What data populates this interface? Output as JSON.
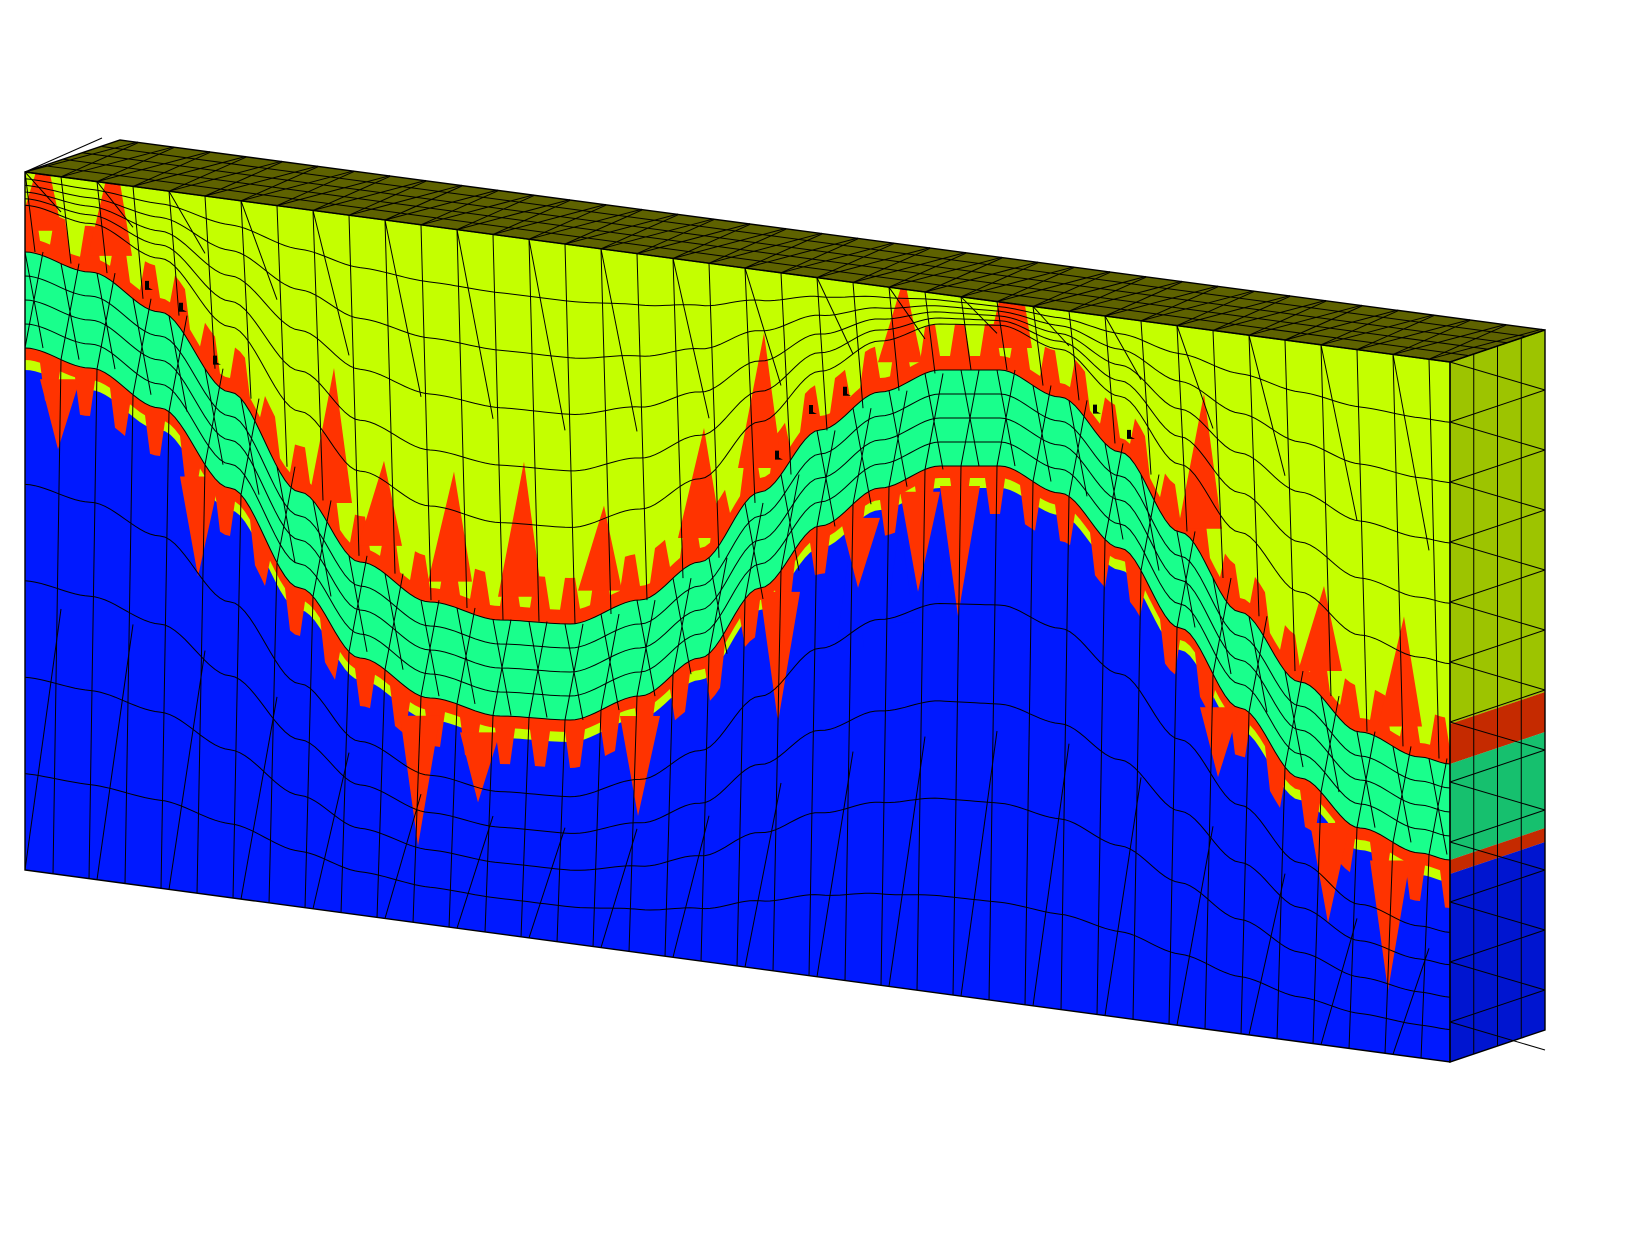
{
  "figure": {
    "kind": "3D tetrahedral finite-element mesh of a layered slab with a sinusoidal interface",
    "background": "#ffffff"
  },
  "materials": [
    {
      "id": "upper-layer",
      "color": "#c4ff00"
    },
    {
      "id": "transition-layer",
      "color": "#ff3300"
    },
    {
      "id": "interface-layer",
      "color": "#19ff8c"
    },
    {
      "id": "lower-layer",
      "color": "#0019ff"
    }
  ],
  "shaded_faces": {
    "top": "#5e6200",
    "side_upper": "#9dc400",
    "side_transition": "#c52a00",
    "side_interface": "#16c06e",
    "side_lower": "#0015d0"
  },
  "edge_color": "#000000",
  "markers": {
    "icon": "black-node-marker-icon",
    "count": 8
  }
}
